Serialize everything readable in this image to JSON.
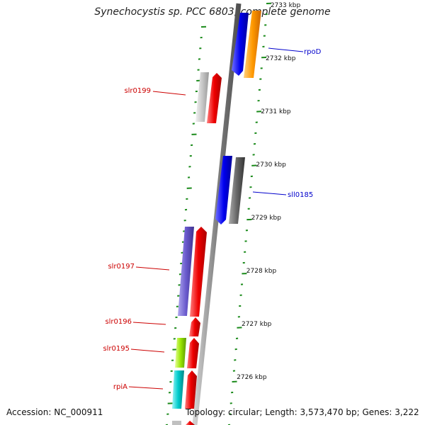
{
  "title": "Synechocystis sp. PCC 6803, complete genome",
  "footer": {
    "accession": "Accession: NC_000911",
    "topology": "Topology: circular; Length: 3,573,470 bp; Genes: 3,222"
  },
  "colors": {
    "backbone": "#8c8c8c",
    "tick": "#1a8a1a",
    "forward_label": "#cc0000",
    "reverse_label": "#0000cc"
  },
  "scale_ticks": [
    "2733 kbp",
    "2732 kbp",
    "2731 kbp",
    "2730 kbp",
    "2729 kbp",
    "2728 kbp",
    "2727 kbp",
    "2726 kbp"
  ],
  "gene_labels": [
    {
      "text": "rpoD",
      "color": "#0000cc"
    },
    {
      "text": "slr0199",
      "color": "#cc0000"
    },
    {
      "text": "sll0185",
      "color": "#0000cc"
    },
    {
      "text": "slr0197",
      "color": "#cc0000"
    },
    {
      "text": "slr0196",
      "color": "#cc0000"
    },
    {
      "text": "slr0195",
      "color": "#cc0000"
    },
    {
      "text": "rpiA",
      "color": "#cc0000"
    }
  ]
}
